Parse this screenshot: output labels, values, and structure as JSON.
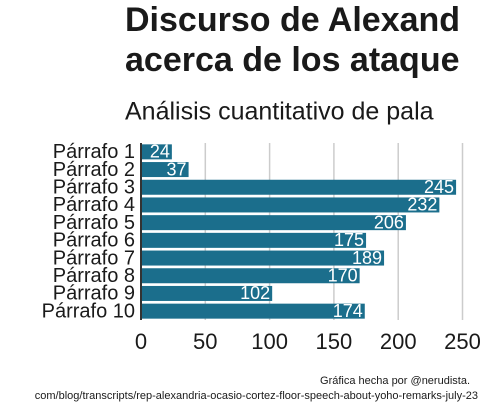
{
  "chart_data": {
    "type": "bar",
    "orientation": "horizontal",
    "title": [
      "Discurso de Alexand",
      "acerca de los ataque"
    ],
    "subtitle": "Análisis cuantitativo de pala",
    "categories": [
      "Párrafo 1",
      "Párrafo 2",
      "Párrafo 3",
      "Párrafo 4",
      "Párrafo 5",
      "Párrafo 6",
      "Párrafo 7",
      "Párrafo 8",
      "Párrafo 9",
      "Párrafo 10"
    ],
    "values": [
      24,
      37,
      245,
      232,
      206,
      175,
      189,
      170,
      102,
      174
    ],
    "color": "#1b6e8c",
    "xlim": [
      0,
      263.6
    ],
    "xticks": [
      0,
      50,
      100,
      150,
      200,
      250
    ],
    "grid": true,
    "credit": "Gráfica hecha por @nerudista.",
    "source": "com/blog/transcripts/rep-alexandria-ocasio-cortez-floor-speech-about-yoho-remarks-july-23"
  }
}
